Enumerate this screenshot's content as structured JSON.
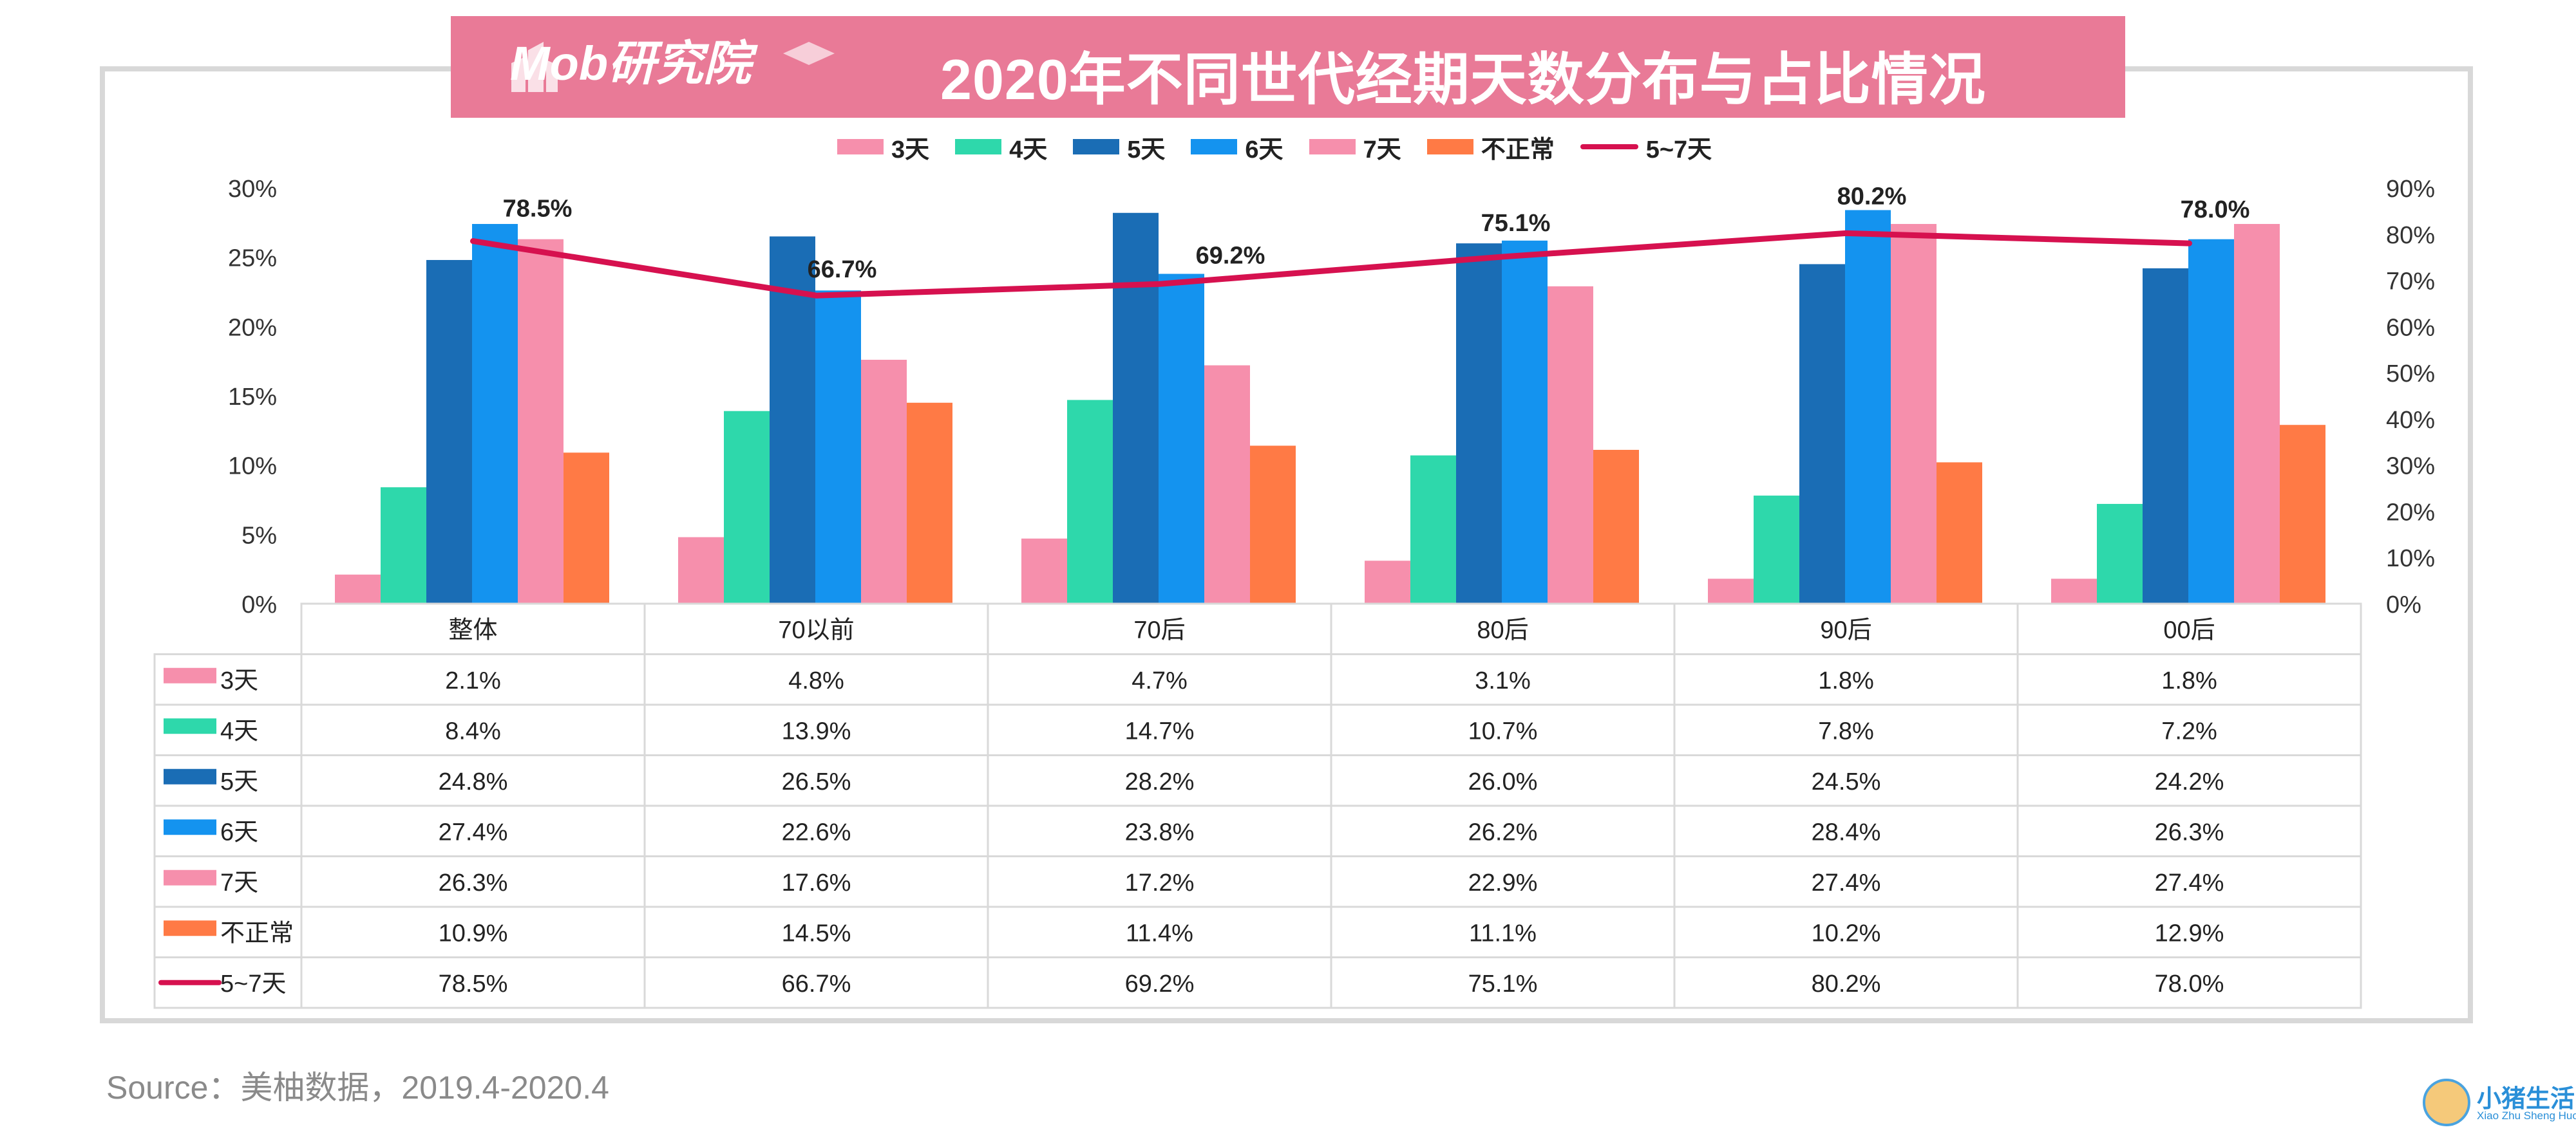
{
  "header": {
    "logo": "Mob研究院",
    "title": "2020年不同世代经期天数分布与占比情况"
  },
  "footer": {
    "source": "Source：美柚数据，2019.4-2020.4"
  },
  "watermark": {
    "name": "小猪生活",
    "pinyin": "Xiao Zhu Sheng Huo"
  },
  "colors": {
    "title_bg": "#e97a97",
    "s3": "#f68fac",
    "s4": "#2ed8ab",
    "s5": "#1a6db5",
    "s6": "#1493ef",
    "s7": "#f68fac",
    "abnormal": "#ff7a45",
    "line": "#d6114f"
  },
  "chart_data": {
    "type": "bar",
    "title": "2020年不同世代经期天数分布与占比情况",
    "categories": [
      "整体",
      "70以前",
      "70后",
      "80后",
      "90后",
      "00后"
    ],
    "series": [
      {
        "name": "3天",
        "axis": "left",
        "color": "#f68fac",
        "values": [
          2.1,
          4.8,
          4.7,
          3.1,
          1.8,
          1.8
        ],
        "labels": [
          "2.1%",
          "4.8%",
          "4.7%",
          "3.1%",
          "1.8%",
          "1.8%"
        ]
      },
      {
        "name": "4天",
        "axis": "left",
        "color": "#2ed8ab",
        "values": [
          8.4,
          13.9,
          14.7,
          10.7,
          7.8,
          7.2
        ],
        "labels": [
          "8.4%",
          "13.9%",
          "14.7%",
          "10.7%",
          "7.8%",
          "7.2%"
        ]
      },
      {
        "name": "5天",
        "axis": "left",
        "color": "#1a6db5",
        "values": [
          24.8,
          26.5,
          28.2,
          26.0,
          24.5,
          24.2
        ],
        "labels": [
          "24.8%",
          "26.5%",
          "28.2%",
          "26.0%",
          "24.5%",
          "24.2%"
        ]
      },
      {
        "name": "6天",
        "axis": "left",
        "color": "#1493ef",
        "values": [
          27.4,
          22.6,
          23.8,
          26.2,
          28.4,
          26.3
        ],
        "labels": [
          "27.4%",
          "22.6%",
          "23.8%",
          "26.2%",
          "28.4%",
          "26.3%"
        ]
      },
      {
        "name": "7天",
        "axis": "left",
        "color": "#f68fac",
        "values": [
          26.3,
          17.6,
          17.2,
          22.9,
          27.4,
          27.4
        ],
        "labels": [
          "26.3%",
          "17.6%",
          "17.2%",
          "22.9%",
          "27.4%",
          "27.4%"
        ]
      },
      {
        "name": "不正常",
        "axis": "left",
        "color": "#ff7a45",
        "values": [
          10.9,
          14.5,
          11.4,
          11.1,
          10.2,
          12.9
        ],
        "labels": [
          "10.9%",
          "14.5%",
          "11.4%",
          "11.1%",
          "10.2%",
          "12.9%"
        ]
      }
    ],
    "line_series": {
      "name": "5~7天",
      "axis": "right",
      "color": "#d6114f",
      "values": [
        78.5,
        66.7,
        69.2,
        75.1,
        80.2,
        78.0
      ],
      "labels": [
        "78.5%",
        "66.7%",
        "69.2%",
        "75.1%",
        "80.2%",
        "78.0%"
      ]
    },
    "y_left": {
      "min": 0,
      "max": 30,
      "ticks": [
        "0%",
        "5%",
        "10%",
        "15%",
        "20%",
        "25%",
        "30%"
      ]
    },
    "y_right": {
      "min": 0,
      "max": 90,
      "ticks": [
        "0%",
        "10%",
        "20%",
        "30%",
        "40%",
        "50%",
        "60%",
        "70%",
        "80%",
        "90%"
      ]
    },
    "legend_position": "top",
    "grid": false,
    "table_below": true
  }
}
